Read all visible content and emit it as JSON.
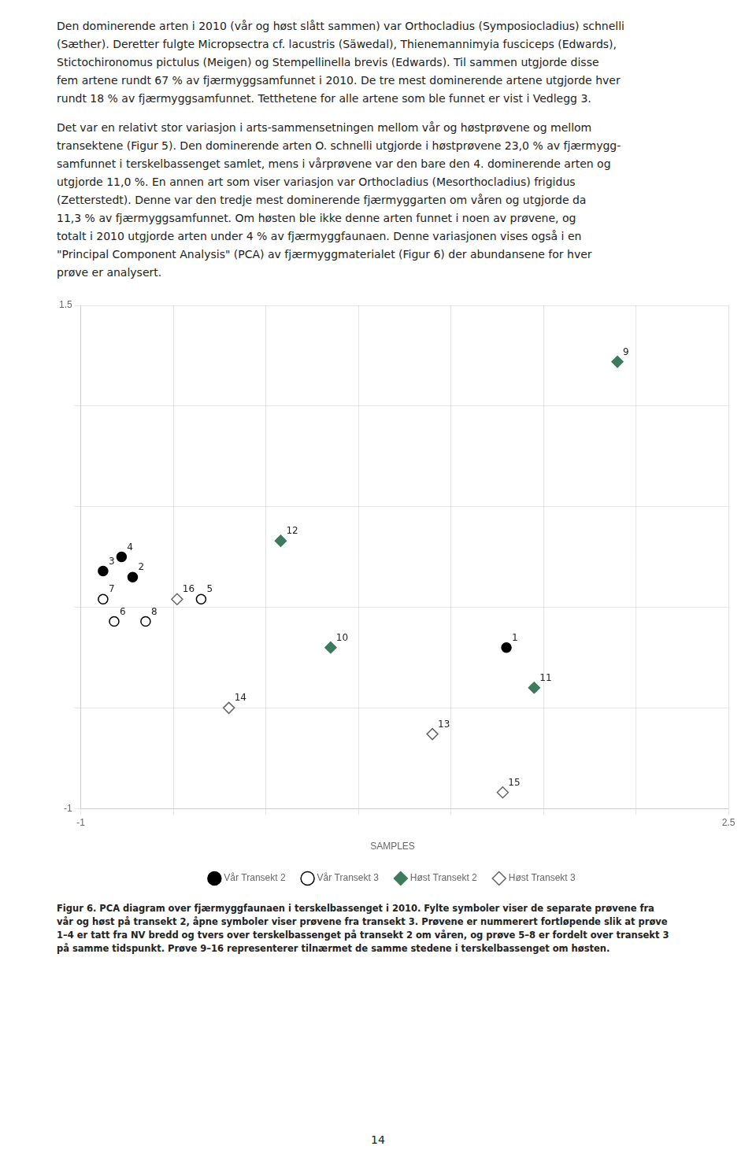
{
  "chart_data": {
    "type": "scatter",
    "text_above": [
      [
        "Den dominerende arten i 2010 (vår og høst slått sammen) var Orthocladius (Symposiocladius) schnelli",
        "(Sæther). Deretter fulgte Micropsectra cf. lacustris (Säwedal), Thienemannimyia fusciceps (Edwards),",
        "Stictochironomus pictulus (Meigen) og Stempellinella brevis (Edwards). Til sammen utgjorde disse",
        "fem artene rundt 67 % av fjærmyggsamfunnet i 2010. De tre mest dominerende artene utgjorde hver",
        "rundt 18 % av fjærmyggsamfunnet. Tetthetene for alle artene som ble funnet er vist i Vedlegg 3."
      ],
      [
        "Det var en relativt stor variasjon i arts-sammensetningen mellom vår og høstprøvene og mellom",
        "transektene (Figur 5). Den dominerende arten O. schnelli utgjorde i høstprøvene 23,0 % av fjærmygg-",
        "samfunnet i terskelbassenget samlet, mens i vårprøvene var den bare den 4. dominerende arten og",
        "utgjorde 11,0 %. En annen art som viser variasjon var Orthocladius (Mesorthocladius) frigidus",
        "(Zetterstedt). Denne var den tredje mest dominerende fjærmyggarten om våren og utgjorde da",
        "11,3 % av fjærmyggsamfunnet. Om høsten ble ikke denne arten funnet i noen av prøvene, og",
        "totalt i 2010 utgjorde arten under 4 % av fjærmyggfaunaen. Denne variasjonen vises også i en",
        "\"Principal Component Analysis\" (PCA) av fjærmyggmaterialet (Figur 6) der abundansene for hver",
        "prøve er analysert."
      ]
    ],
    "xlim": [
      -1.0,
      2.5
    ],
    "ylim": [
      -1.0,
      1.5
    ],
    "xticks": [
      -1.0,
      {
        "value": -0.5,
        "label": null
      },
      {
        "value": 0.0,
        "label": null
      },
      {
        "value": 0.5,
        "label": null
      },
      {
        "value": 1.0,
        "label": null
      },
      {
        "value": 1.5,
        "label": null
      },
      {
        "value": 2.0,
        "label": null
      },
      2.5
    ],
    "yticks": [
      -1.0,
      {
        "value": -0.5,
        "label": null
      },
      {
        "value": 0.0,
        "label": null
      },
      {
        "value": 0.5,
        "label": null
      },
      {
        "value": 1.0,
        "label": null
      },
      1.5
    ],
    "grid": true,
    "legend": "bottom",
    "legend_title": "SAMPLES",
    "series": [
      {
        "name": "Vår Transekt 2",
        "color": "#000000",
        "marker": "circle",
        "x": [
          1.3,
          -0.72,
          -0.88,
          -0.78
        ],
        "values": [
          -0.2,
          0.15,
          0.18,
          0.25
        ],
        "point_labels": [
          1,
          2,
          3,
          4
        ]
      },
      {
        "name": "Vår Transekt 3",
        "color": "#000000",
        "marker": "circle-open",
        "x": [
          -0.35,
          -0.82,
          -0.88,
          -0.65
        ],
        "values": [
          0.04,
          -0.07,
          0.04,
          -0.07
        ],
        "point_labels": [
          5,
          6,
          7,
          8
        ]
      },
      {
        "name": "Høst Transekt 2",
        "color": "#3d7a5e",
        "marker": "diamond",
        "x": [
          1.9,
          0.35,
          1.45,
          0.08
        ],
        "values": [
          1.22,
          -0.2,
          -0.4,
          0.33
        ],
        "point_labels": [
          9,
          10,
          11,
          12
        ]
      },
      {
        "name": "Høst Transekt 3",
        "color": "#666666",
        "marker": "diamond-open",
        "x": [
          0.9,
          -0.2,
          1.28,
          -0.48
        ],
        "values": [
          -0.63,
          -0.5,
          -0.92,
          0.04
        ],
        "point_labels": [
          13,
          14,
          15,
          16
        ]
      }
    ],
    "caption": [
      "Figur 6. PCA diagram over fjærmyggfaunaen i terskelbassenget i 2010. Fylte symboler viser de separate prøvene fra",
      "vår og høst på transekt 2, åpne symboler viser prøvene fra transekt 3. Prøvene er nummerert fortløpende slik at prøve",
      "1–4 er tatt fra NV bredd og tvers over terskelbassenget på transekt 2 om våren, og prøve 5–8 er fordelt over transekt 3",
      "på samme tidspunkt. Prøve 9–16 representerer tilnærmet de samme stedene i terskelbassenget om høsten."
    ],
    "page_number": "14"
  }
}
